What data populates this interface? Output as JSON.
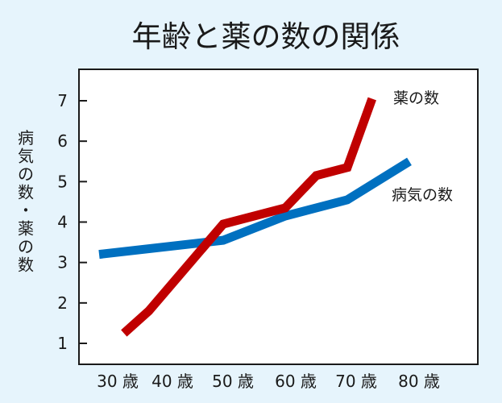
{
  "chart_data": {
    "type": "line",
    "title": "年齢と薬の数の関係",
    "ylabel": "病気の数・薬の数",
    "xlabel": "",
    "categories": [
      "30 歳",
      "40 歳",
      "50 歳",
      "60 歳",
      "70 歳",
      "80 歳"
    ],
    "yticks": [
      "1",
      "2",
      "3",
      "4",
      "5",
      "6",
      "7"
    ],
    "ylim": [
      0.3,
      7.8
    ],
    "xlim": [
      30,
      90
    ],
    "grid": false,
    "series": [
      {
        "name": "薬の数",
        "color": "#c00000",
        "points": [
          {
            "x": 34,
            "y": 1.25
          },
          {
            "x": 38,
            "y": 1.8
          },
          {
            "x": 50,
            "y": 3.95
          },
          {
            "x": 60,
            "y": 4.35
          },
          {
            "x": 65,
            "y": 5.15
          },
          {
            "x": 70,
            "y": 5.35
          },
          {
            "x": 74,
            "y": 7.05
          }
        ]
      },
      {
        "name": "病気の数",
        "color": "#0070c0",
        "points": [
          {
            "x": 30,
            "y": 3.2
          },
          {
            "x": 50,
            "y": 3.55
          },
          {
            "x": 60,
            "y": 4.15
          },
          {
            "x": 70,
            "y": 4.55
          },
          {
            "x": 80,
            "y": 5.5
          }
        ]
      }
    ]
  }
}
